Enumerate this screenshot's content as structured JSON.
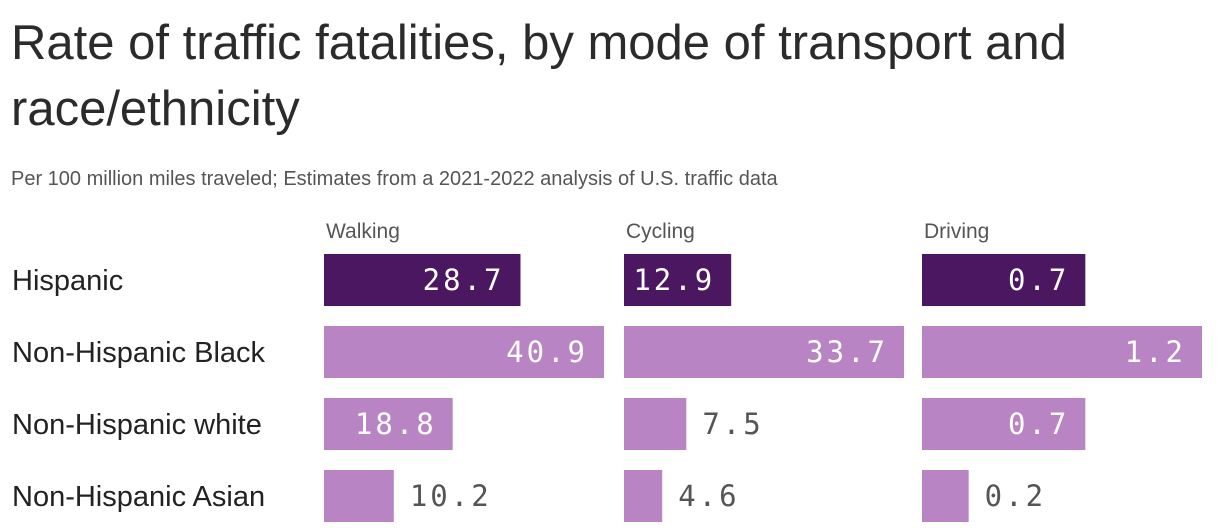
{
  "title": "Rate of traffic fatalities, by mode of transport and race/ethnicity",
  "subtitle": "Per 100 million miles traveled; Estimates from a 2021-2022 analysis of U.S. traffic data",
  "colors": {
    "highlight": "#4a1760",
    "base": "#b984c4",
    "label_in_bar": "#ffffff",
    "label_out": "#555555"
  },
  "chart_data": {
    "type": "bar",
    "orientation": "horizontal",
    "layout": "small-multiples",
    "title": "Rate of traffic fatalities, by mode of transport and race/ethnicity",
    "subtitle": "Per 100 million miles traveled; Estimates from a 2021-2022 analysis of U.S. traffic data",
    "categories": [
      "Hispanic",
      "Non-Hispanic Black",
      "Non-Hispanic white",
      "Non-Hispanic Asian"
    ],
    "highlighted_category": "Hispanic",
    "series": [
      {
        "name": "Walking",
        "values": [
          28.7,
          40.9,
          18.8,
          10.2
        ]
      },
      {
        "name": "Cycling",
        "values": [
          12.9,
          33.7,
          7.5,
          4.6
        ]
      },
      {
        "name": "Driving",
        "values": [
          0.7,
          1.2,
          0.7,
          0.2
        ]
      }
    ],
    "grid": false,
    "legend": "none"
  }
}
